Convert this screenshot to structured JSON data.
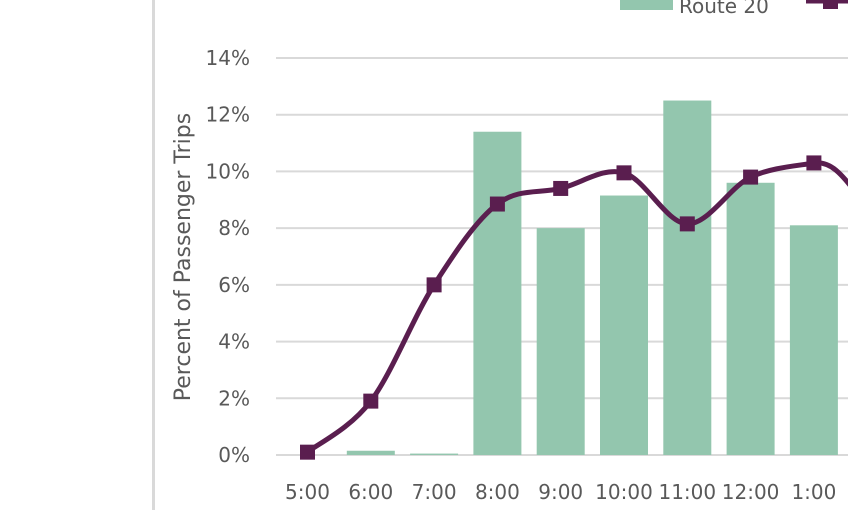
{
  "chart_data": {
    "type": "bar",
    "categories": [
      "5:00",
      "6:00",
      "7:00",
      "8:00",
      "9:00",
      "10:00",
      "11:00",
      "12:00",
      "1:00"
    ],
    "series": [
      {
        "name": "Route 20",
        "kind": "bar",
        "color": "#93c6ae",
        "values": [
          0.0,
          0.15,
          0.05,
          11.4,
          8.0,
          9.15,
          12.5,
          9.6,
          8.1
        ]
      },
      {
        "name": "",
        "kind": "line",
        "smooth": true,
        "marker": "square",
        "color": "#5a1e4f",
        "values": [
          0.1,
          1.9,
          6.0,
          8.85,
          9.4,
          9.95,
          8.15,
          9.8,
          10.3
        ]
      }
    ],
    "ylabel": "Percent of Passenger Trips",
    "xlabel": "",
    "ylim": [
      0,
      14
    ],
    "yticks": [
      "0%",
      "2%",
      "4%",
      "6%",
      "8%",
      "10%",
      "12%",
      "14%"
    ],
    "grid": true,
    "legend_position": "top-right"
  }
}
